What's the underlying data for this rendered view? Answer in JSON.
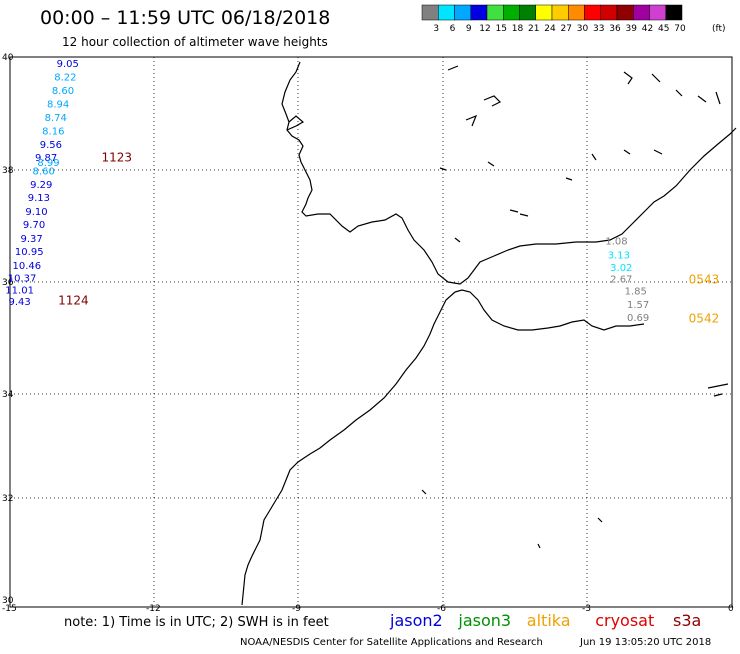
{
  "header": {
    "title": "00:00 – 11:59 UTC 06/18/2018",
    "subtitle": "12 hour collection of altimeter wave heights"
  },
  "legend": {
    "unit": "(ft)",
    "bins": [
      {
        "label": "3",
        "color": "#808080"
      },
      {
        "label": "6",
        "color": "#00e5ff"
      },
      {
        "label": "9",
        "color": "#00a8ff"
      },
      {
        "label": "12",
        "color": "#0000e0"
      },
      {
        "label": "15",
        "color": "#40e040"
      },
      {
        "label": "18",
        "color": "#00b000"
      },
      {
        "label": "21",
        "color": "#008000"
      },
      {
        "label": "24",
        "color": "#ffff00"
      },
      {
        "label": "27",
        "color": "#ffcc00"
      },
      {
        "label": "30",
        "color": "#ff8c00"
      },
      {
        "label": "33",
        "color": "#ff0000"
      },
      {
        "label": "36",
        "color": "#d00000"
      },
      {
        "label": "39",
        "color": "#900000"
      },
      {
        "label": "42",
        "color": "#a000a0"
      },
      {
        "label": "45",
        "color": "#d040d0"
      },
      {
        "label": "70",
        "color": "#000000"
      }
    ]
  },
  "axes": {
    "lon_ticks": [
      "-15",
      "-12",
      "-9",
      "-6",
      "-3",
      "0"
    ],
    "lat_ticks": [
      "40",
      "38",
      "36",
      "34",
      "32",
      "30"
    ]
  },
  "tracks": [
    {
      "pass_label": "1123",
      "pass_color": "#800000",
      "points": [
        {
          "value": "9.05",
          "lon": -13.8,
          "lat": 39.82,
          "color": "#0000e0"
        },
        {
          "value": "8.22",
          "lon": -13.85,
          "lat": 39.57,
          "color": "#00a8ff"
        },
        {
          "value": "8.60",
          "lon": -13.9,
          "lat": 39.33,
          "color": "#00a8ff"
        },
        {
          "value": "8.94",
          "lon": -14.0,
          "lat": 39.08,
          "color": "#00a8ff"
        },
        {
          "value": "8.74",
          "lon": -14.05,
          "lat": 38.84,
          "color": "#00a8ff"
        },
        {
          "value": "8.16",
          "lon": -14.1,
          "lat": 38.59,
          "color": "#00a8ff"
        },
        {
          "value": "9.56",
          "lon": -14.15,
          "lat": 38.35,
          "color": "#0000e0"
        },
        {
          "value": "9.87",
          "lon": -14.25,
          "lat": 38.11,
          "color": "#0000e0"
        },
        {
          "value": "8.99",
          "lon": -14.2,
          "lat": 38.02,
          "color": "#00a8ff"
        },
        {
          "value": "8.60",
          "lon": -14.3,
          "lat": 37.86,
          "color": "#00a8ff"
        },
        {
          "value": "9.29",
          "lon": -14.35,
          "lat": 37.62,
          "color": "#0000e0"
        },
        {
          "value": "9.13",
          "lon": -14.4,
          "lat": 37.38,
          "color": "#0000e0"
        },
        {
          "value": "9.10",
          "lon": -14.45,
          "lat": 37.13,
          "color": "#0000e0"
        },
        {
          "value": "9.70",
          "lon": -14.5,
          "lat": 36.89,
          "color": "#0000e0"
        },
        {
          "value": "9.37",
          "lon": -14.55,
          "lat": 36.64,
          "color": "#0000e0"
        },
        {
          "value": "10.95",
          "lon": -14.6,
          "lat": 36.4,
          "color": "#0000e0"
        },
        {
          "value": "10.46",
          "lon": -14.65,
          "lat": 36.15,
          "color": "#0000e0"
        },
        {
          "value": "10.37",
          "lon": -14.75,
          "lat": 35.92,
          "color": "#0000e0"
        }
      ]
    },
    {
      "pass_label": "1124",
      "pass_color": "#800000",
      "points": [
        {
          "value": "11.01",
          "lon": -14.8,
          "lat": 35.7,
          "color": "#0000e0"
        },
        {
          "value": "9.43",
          "lon": -14.8,
          "lat": 35.49,
          "color": "#0000e0"
        }
      ]
    },
    {
      "pass_label": "0543",
      "pass_color": "#f0a000",
      "points": [
        {
          "value": "1.08",
          "lon": -2.4,
          "lat": 36.59,
          "color": "#808080"
        },
        {
          "value": "3.13",
          "lon": -2.35,
          "lat": 36.34,
          "color": "#00e5ff"
        },
        {
          "value": "3.02",
          "lon": -2.3,
          "lat": 36.11,
          "color": "#00e5ff"
        },
        {
          "value": "2.67",
          "lon": -2.3,
          "lat": 35.9,
          "color": "#808080"
        }
      ]
    },
    {
      "pass_label": "0542",
      "pass_color": "#f0a000",
      "points": [
        {
          "value": "1.85",
          "lon": -2.0,
          "lat": 35.68,
          "color": "#808080"
        },
        {
          "value": "1.57",
          "lon": -1.95,
          "lat": 35.44,
          "color": "#808080"
        },
        {
          "value": "0.69",
          "lon": -1.95,
          "lat": 35.2,
          "color": "#808080"
        }
      ]
    }
  ],
  "footer": {
    "note": "note: 1) Time is in UTC; 2) SWH is in feet",
    "satellites": [
      {
        "name": "jason2",
        "color": "#0000e0"
      },
      {
        "name": "jason3",
        "color": "#009000"
      },
      {
        "name": "altika",
        "color": "#f0a000"
      },
      {
        "name": "cryosat",
        "color": "#e00000"
      },
      {
        "name": "s3a",
        "color": "#900000"
      }
    ],
    "credit": "NOAA/NESDIS Center for Satellite Applications and Research",
    "timestamp": "Jun 19 13:05:20 UTC 2018"
  }
}
